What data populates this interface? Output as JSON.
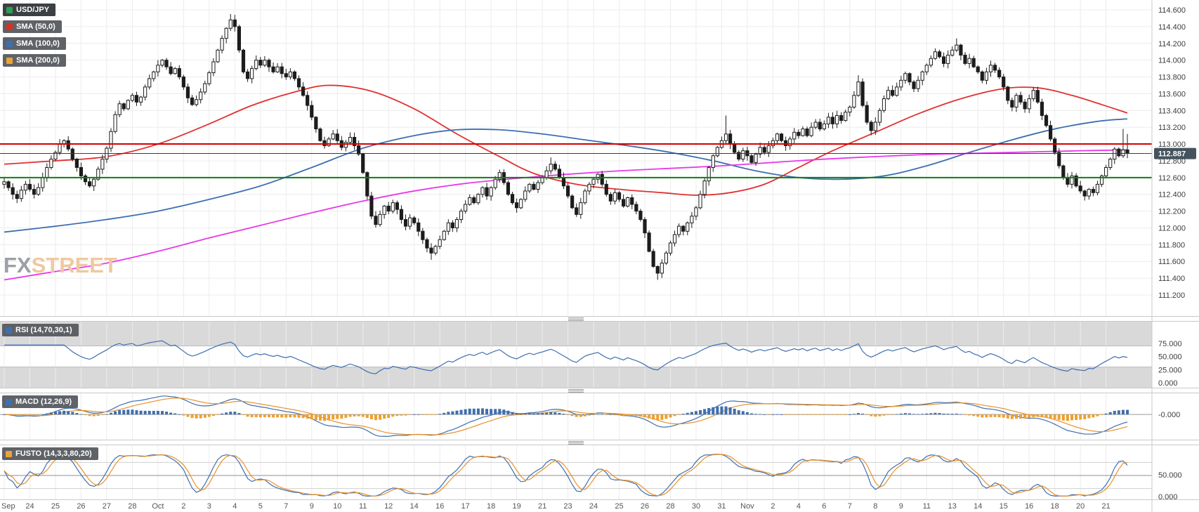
{
  "watermark": {
    "fx": "FX",
    "street": "STREET"
  },
  "legend": {
    "symbol": {
      "label": "USD/JPY",
      "chip": "#2e9e4f"
    },
    "items": [
      {
        "label": "SMA (50,0)",
        "chip": "#d93025"
      },
      {
        "label": "SMA (100,0)",
        "chip": "#3e6fb0"
      },
      {
        "label": "SMA (200,0)",
        "chip": "#e8a33d"
      }
    ]
  },
  "chart_data": {
    "type": "candlestick",
    "instrument": "USD/JPY",
    "candles_per_label": 6,
    "time_labels": [
      "Sep",
      "24",
      "25",
      "26",
      "27",
      "28",
      "Oct",
      "2",
      "3",
      "4",
      "5",
      "7",
      "9",
      "10",
      "11",
      "12",
      "14",
      "16",
      "17",
      "18",
      "19",
      "21",
      "23",
      "24",
      "25",
      "26",
      "28",
      "30",
      "31",
      "Nov",
      "2",
      "4",
      "6",
      "7",
      "8",
      "9",
      "11",
      "13",
      "14",
      "15",
      "16",
      "18",
      "20",
      "21"
    ],
    "price_axis": {
      "min": 111.2,
      "max": 114.6,
      "step": 0.2
    },
    "first_open": 112.52,
    "closes": [
      112.55,
      112.48,
      112.4,
      112.35,
      112.45,
      112.52,
      112.46,
      112.4,
      112.48,
      112.6,
      112.72,
      112.82,
      112.9,
      113.0,
      113.04,
      112.94,
      112.82,
      112.72,
      112.62,
      112.55,
      112.5,
      112.58,
      112.7,
      112.82,
      112.95,
      113.15,
      113.35,
      113.48,
      113.42,
      113.52,
      113.58,
      113.5,
      113.56,
      113.68,
      113.78,
      113.86,
      113.94,
      114.0,
      113.92,
      113.84,
      113.9,
      113.8,
      113.68,
      113.55,
      113.47,
      113.53,
      113.62,
      113.72,
      113.85,
      113.98,
      114.12,
      114.26,
      114.38,
      114.48,
      114.4,
      114.12,
      113.86,
      113.78,
      113.9,
      114.0,
      113.94,
      114.0,
      113.92,
      113.86,
      113.92,
      113.84,
      113.8,
      113.86,
      113.78,
      113.68,
      113.58,
      113.46,
      113.32,
      113.18,
      113.04,
      112.98,
      113.06,
      113.12,
      113.04,
      112.96,
      113.02,
      113.08,
      112.98,
      112.88,
      112.66,
      112.38,
      112.14,
      112.04,
      112.16,
      112.26,
      112.2,
      112.3,
      112.22,
      112.1,
      112.02,
      112.12,
      112.06,
      111.96,
      111.86,
      111.76,
      111.7,
      111.78,
      111.86,
      111.96,
      112.06,
      112.0,
      112.1,
      112.2,
      112.28,
      112.36,
      112.3,
      112.4,
      112.48,
      112.38,
      112.48,
      112.58,
      112.66,
      112.54,
      112.4,
      112.3,
      112.24,
      112.34,
      112.44,
      112.52,
      112.46,
      112.54,
      112.6,
      112.68,
      112.76,
      112.7,
      112.6,
      112.5,
      112.38,
      112.24,
      112.16,
      112.3,
      112.44,
      112.52,
      112.58,
      112.64,
      112.52,
      112.4,
      112.32,
      112.42,
      112.34,
      112.26,
      112.36,
      112.28,
      112.2,
      112.1,
      111.94,
      111.72,
      111.54,
      111.46,
      111.58,
      111.7,
      111.82,
      111.92,
      112.02,
      111.96,
      112.06,
      112.14,
      112.24,
      112.4,
      112.56,
      112.72,
      112.86,
      112.96,
      113.04,
      113.12,
      113.0,
      112.9,
      112.82,
      112.92,
      112.86,
      112.78,
      112.88,
      112.96,
      112.9,
      112.98,
      113.04,
      113.12,
      113.04,
      112.98,
      113.06,
      113.14,
      113.1,
      113.18,
      113.1,
      113.2,
      113.26,
      113.18,
      113.24,
      113.32,
      113.24,
      113.34,
      113.28,
      113.38,
      113.44,
      113.58,
      113.74,
      113.46,
      113.26,
      113.16,
      113.26,
      113.4,
      113.54,
      113.64,
      113.58,
      113.68,
      113.76,
      113.84,
      113.74,
      113.66,
      113.76,
      113.86,
      113.94,
      114.02,
      114.1,
      114.04,
      113.96,
      114.06,
      114.12,
      114.18,
      114.06,
      113.96,
      114.02,
      113.92,
      113.86,
      113.76,
      113.86,
      113.94,
      113.88,
      113.8,
      113.68,
      113.52,
      113.44,
      113.58,
      113.5,
      113.42,
      113.54,
      113.64,
      113.5,
      113.34,
      113.22,
      113.06,
      112.9,
      112.74,
      112.6,
      112.52,
      112.62,
      112.5,
      112.44,
      112.38,
      112.46,
      112.42,
      112.52,
      112.62,
      112.72,
      112.82,
      112.94,
      112.86,
      112.93,
      112.887
    ],
    "wick_overrides": [
      [
        3,
        "low",
        112.3
      ],
      [
        53,
        "high",
        114.55
      ],
      [
        54,
        "high",
        114.53
      ],
      [
        100,
        "low",
        111.62
      ],
      [
        128,
        "high",
        112.84
      ],
      [
        153,
        "low",
        111.38
      ],
      [
        169,
        "high",
        113.34
      ],
      [
        200,
        "high",
        113.82
      ],
      [
        223,
        "high",
        114.26
      ],
      [
        262,
        "high",
        113.18
      ],
      [
        263,
        "high",
        113.12
      ]
    ],
    "hlines": [
      {
        "name": "resistance-line",
        "price": 113.0,
        "color": "#d40000"
      },
      {
        "name": "support-line",
        "price": 112.6,
        "color": "#0f7d0f"
      }
    ],
    "last_price": {
      "value": 112.887,
      "label": "112.887",
      "color": "#44535e"
    },
    "overlays": [
      {
        "id": "sma50-line",
        "name": "SMA (50,0)",
        "color": "#e03131",
        "anchors": [
          [
            0,
            112.76
          ],
          [
            12,
            112.8
          ],
          [
            24,
            112.85
          ],
          [
            36,
            113.0
          ],
          [
            48,
            113.24
          ],
          [
            58,
            113.46
          ],
          [
            68,
            113.62
          ],
          [
            76,
            113.7
          ],
          [
            86,
            113.63
          ],
          [
            96,
            113.42
          ],
          [
            106,
            113.12
          ],
          [
            116,
            112.85
          ],
          [
            124,
            112.65
          ],
          [
            134,
            112.52
          ],
          [
            144,
            112.46
          ],
          [
            154,
            112.42
          ],
          [
            162,
            112.39
          ],
          [
            170,
            112.42
          ],
          [
            178,
            112.52
          ],
          [
            186,
            112.72
          ],
          [
            194,
            112.92
          ],
          [
            204,
            113.14
          ],
          [
            214,
            113.36
          ],
          [
            224,
            113.54
          ],
          [
            234,
            113.66
          ],
          [
            242,
            113.67
          ],
          [
            250,
            113.58
          ],
          [
            257,
            113.47
          ],
          [
            263,
            113.37
          ]
        ]
      },
      {
        "id": "sma100-line",
        "name": "SMA (100,0)",
        "color": "#3e6fb0",
        "anchors": [
          [
            0,
            111.95
          ],
          [
            12,
            112.02
          ],
          [
            24,
            112.1
          ],
          [
            36,
            112.2
          ],
          [
            48,
            112.34
          ],
          [
            60,
            112.5
          ],
          [
            72,
            112.72
          ],
          [
            84,
            112.95
          ],
          [
            96,
            113.1
          ],
          [
            106,
            113.17
          ],
          [
            116,
            113.17
          ],
          [
            126,
            113.12
          ],
          [
            136,
            113.05
          ],
          [
            146,
            112.98
          ],
          [
            156,
            112.9
          ],
          [
            166,
            112.8
          ],
          [
            176,
            112.68
          ],
          [
            186,
            112.6
          ],
          [
            196,
            112.58
          ],
          [
            206,
            112.62
          ],
          [
            216,
            112.74
          ],
          [
            226,
            112.9
          ],
          [
            236,
            113.05
          ],
          [
            246,
            113.18
          ],
          [
            256,
            113.27
          ],
          [
            263,
            113.3
          ]
        ]
      },
      {
        "id": "sma200-line",
        "name": "SMA (200,0)",
        "color": "#e83ae8",
        "anchors": [
          [
            0,
            111.38
          ],
          [
            12,
            111.48
          ],
          [
            24,
            111.58
          ],
          [
            36,
            111.72
          ],
          [
            48,
            111.88
          ],
          [
            60,
            112.03
          ],
          [
            72,
            112.18
          ],
          [
            84,
            112.32
          ],
          [
            96,
            112.44
          ],
          [
            108,
            112.53
          ],
          [
            120,
            112.59
          ],
          [
            132,
            112.64
          ],
          [
            144,
            112.68
          ],
          [
            156,
            112.71
          ],
          [
            168,
            112.74
          ],
          [
            180,
            112.78
          ],
          [
            192,
            112.82
          ],
          [
            204,
            112.85
          ],
          [
            216,
            112.875
          ],
          [
            228,
            112.89
          ],
          [
            240,
            112.905
          ],
          [
            252,
            112.92
          ],
          [
            263,
            112.93
          ]
        ]
      }
    ],
    "panels": {
      "rsi": {
        "label": "RSI (14,70,30,1)",
        "chip": "#3e6fb0",
        "period": 14,
        "upper": 70,
        "lower": 30,
        "axis_values": [
          75,
          50,
          25,
          0
        ],
        "color": "#3e6fb0"
      },
      "macd": {
        "label": "MACD (12,26,9)",
        "chip": "#3e6fb0",
        "fast": 12,
        "slow": 26,
        "signal": 9,
        "zero_label": "-0.000",
        "macd_color": "#3e6fb0",
        "signal_color": "#e8922a",
        "hist_pos_color": "#3e6fb0",
        "hist_neg_color": "#efa02e"
      },
      "stoch": {
        "label": "FUSTO (14,3,3,80,20)",
        "chip": "#e8a33d",
        "k": 14,
        "slow": 3,
        "d": 3,
        "upper": 80,
        "lower": 20,
        "axis_values": [
          50,
          0
        ],
        "k_color": "#3e6fb0",
        "d_color": "#e8922a"
      }
    }
  }
}
